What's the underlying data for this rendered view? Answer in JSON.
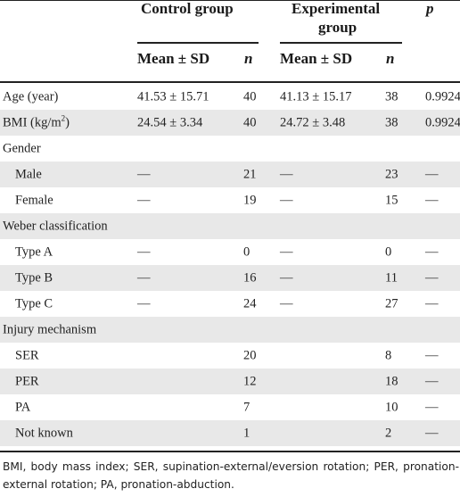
{
  "header": {
    "control_group": "Control group",
    "experimental_group_line1": "Experimental",
    "experimental_group_line2": "group",
    "p": "p",
    "mean_sd": "Mean ± SD",
    "n": "n"
  },
  "rows": [
    {
      "label": "Age (year)",
      "cm": "41.53 ± 15.71",
      "cn": "40",
      "em": "41.13 ± 15.17",
      "en": "38",
      "p": "0.9924"
    },
    {
      "label": "BMI (kg/m",
      "label_sup": "2",
      "label_tail": ")",
      "cm": "24.54 ± 3.34",
      "cn": "40",
      "em": "24.72 ± 3.48",
      "en": "38",
      "p": "0.9924"
    },
    {
      "label": "Gender"
    },
    {
      "label": "Male",
      "cm": "—",
      "cn": "21",
      "em": "—",
      "en": "23",
      "p": "—"
    },
    {
      "label": "Female",
      "cm": "—",
      "cn": "19",
      "em": "—",
      "en": "15",
      "p": "—"
    },
    {
      "label": "Weber classification"
    },
    {
      "label": "Type A",
      "cm": "—",
      "cn": "0",
      "em": "—",
      "en": "0",
      "p": "—"
    },
    {
      "label": "Type B",
      "cm": "—",
      "cn": "16",
      "em": "—",
      "en": "11",
      "p": "—"
    },
    {
      "label": "Type C",
      "cm": "—",
      "cn": "24",
      "em": "—",
      "en": "27",
      "p": "—"
    },
    {
      "label": "Injury mechanism"
    },
    {
      "label": "SER",
      "cm": "20",
      "en": "8",
      "p": "—"
    },
    {
      "label": "PER",
      "cm": "12",
      "en": "18",
      "p": "—"
    },
    {
      "label": "PA",
      "cm": "7",
      "en": "10",
      "p": "—"
    },
    {
      "label": "Not known",
      "cm": "1",
      "en": "2",
      "p": "—"
    }
  ],
  "footnote": "BMI, body mass index; SER, supination-external/eversion rotation; PER, pronation-external rotation; PA, pronation-abduction."
}
